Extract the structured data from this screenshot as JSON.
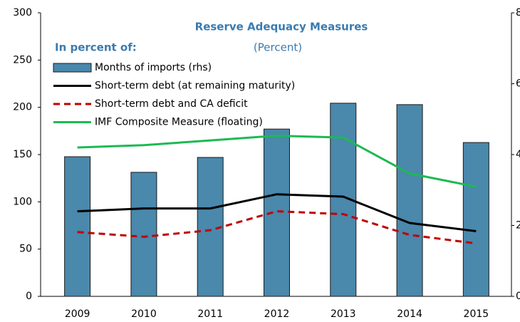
{
  "chart_data": {
    "type": "bar",
    "title": "Reserve Adequacy  Measures",
    "subtitle": "(Percent)",
    "legend_title": "In percent of:",
    "categories": [
      "2009",
      "2010",
      "2011",
      "2012",
      "2013",
      "2014",
      "2015"
    ],
    "series": [
      {
        "name": "Months of imports (rhs)",
        "type": "bar",
        "axis": "y2",
        "color": "#4a88ac",
        "values": [
          3.94,
          3.5,
          3.92,
          4.72,
          5.45,
          5.41,
          4.34
        ]
      },
      {
        "name": "Short-term debt (at remaining maturity)",
        "type": "line",
        "color": "#000000",
        "values": [
          90,
          93,
          93,
          108,
          105.5,
          77.6,
          69
        ]
      },
      {
        "name": "Short-term debt and CA deficit",
        "type": "line",
        "dashed": true,
        "color": "#c00000",
        "values": [
          68,
          63,
          70,
          90,
          87,
          65,
          56
        ]
      },
      {
        "name": "IMF Composite Measure (floating)",
        "type": "line",
        "color": "#1db954",
        "values": [
          157.5,
          160,
          165,
          170,
          168,
          130,
          116
        ]
      }
    ],
    "ylim": [
      0,
      300
    ],
    "yticks": [
      0,
      50,
      100,
      150,
      200,
      250,
      300
    ],
    "y2lim": [
      0,
      8
    ],
    "y2ticks": [
      0,
      2,
      4,
      6,
      8
    ],
    "legend": "upper-left",
    "grid": false
  }
}
